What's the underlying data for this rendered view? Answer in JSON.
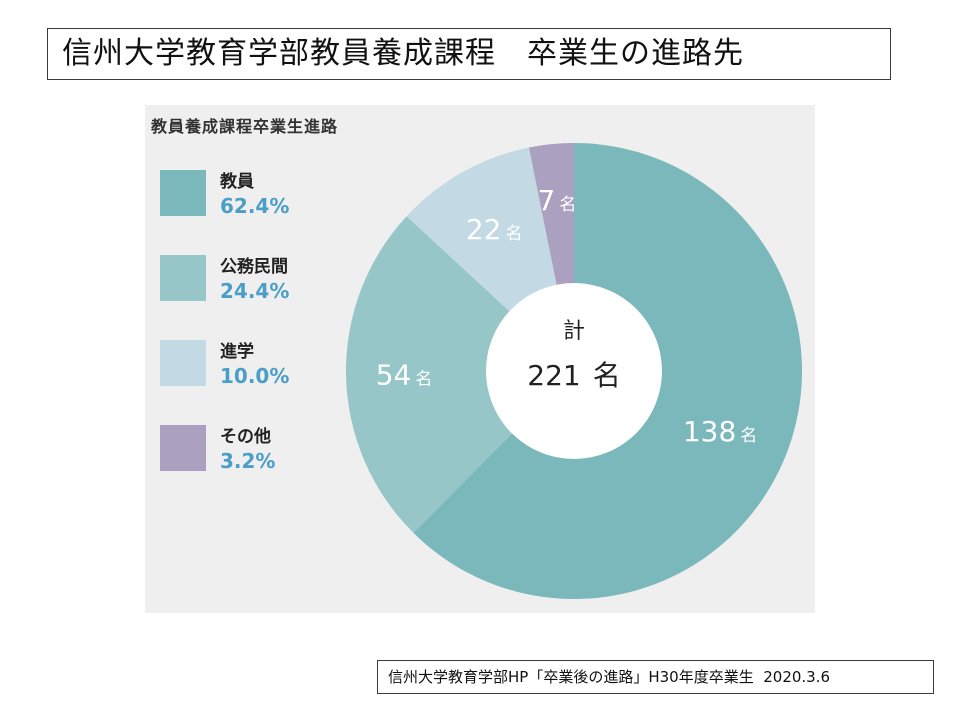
{
  "slide": {
    "title": "信州大学教育学部教員養成課程　卒業生の進路先",
    "source": "信州大学教育学部HP「卒業後の進路」H30年度卒業生  2020.3.6"
  },
  "chart_data": {
    "type": "pie",
    "title": "教員養成課程卒業生進路",
    "categories": [
      "教員",
      "公務民間",
      "進学",
      "その他"
    ],
    "values": [
      138,
      54,
      22,
      7
    ],
    "percentages": [
      "62.4%",
      "24.4%",
      "10.0%",
      "3.2%"
    ],
    "unit": "名",
    "colors": [
      "#7ab8bb",
      "#96c6c8",
      "#c3d9e3",
      "#aba0c0"
    ],
    "total_label": "計",
    "total_value": "221",
    "start": "12 o'clock",
    "direction": "clockwise",
    "donut": true
  }
}
